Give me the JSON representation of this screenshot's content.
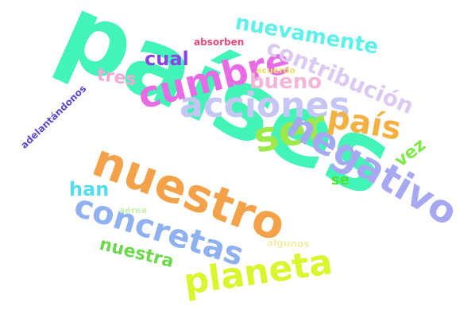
{
  "words": {
    "paises": {
      "text": "países",
      "color": "#42f5b6"
    },
    "nuestro": {
      "text": "nuestro",
      "color": "#f4a24a"
    },
    "concretas": {
      "text": "concretas",
      "color": "#8fb1f0"
    },
    "planeta": {
      "text": "planeta",
      "color": "#d9f52e"
    },
    "acciones": {
      "text": "acciones",
      "color": "#c6c6f4"
    },
    "cumbre": {
      "text": "cumbre",
      "color": "#e86be6"
    },
    "ser": {
      "text": "ser",
      "color": "#9de84a"
    },
    "negativo": {
      "text": "negativo",
      "color": "#a6a8f2"
    },
    "pais": {
      "text": "país",
      "color": "#f4b040"
    },
    "nuevamente": {
      "text": "nuevamente",
      "color": "#5ef0ea"
    },
    "contribucion": {
      "text": "contribución",
      "color": "#dcc9f2"
    },
    "bueno": {
      "text": "bueno",
      "color": "#f4b6d8"
    },
    "cual": {
      "text": "cual",
      "color": "#8a44e8"
    },
    "tres": {
      "text": "tres",
      "color": "#f4a8d8"
    },
    "han": {
      "text": "han",
      "color": "#52dcf0"
    },
    "nuestra": {
      "text": "nuestra",
      "color": "#6ad84a"
    },
    "vez": {
      "text": "vez",
      "color": "#7ee84a"
    },
    "se": {
      "text": "se",
      "color": "#52e02e"
    },
    "adelantandonos": {
      "text": "adelantándonos",
      "color": "#5a48d8"
    },
    "absorben": {
      "text": "absorben",
      "color": "#e84a7a"
    },
    "acuerdo": {
      "text": "acuerdo",
      "color": "#e8e070"
    },
    "aerea": {
      "text": "aérea",
      "color": "#c6f0b0"
    },
    "algunos": {
      "text": "algunos",
      "color": "#f4ecaa"
    }
  }
}
